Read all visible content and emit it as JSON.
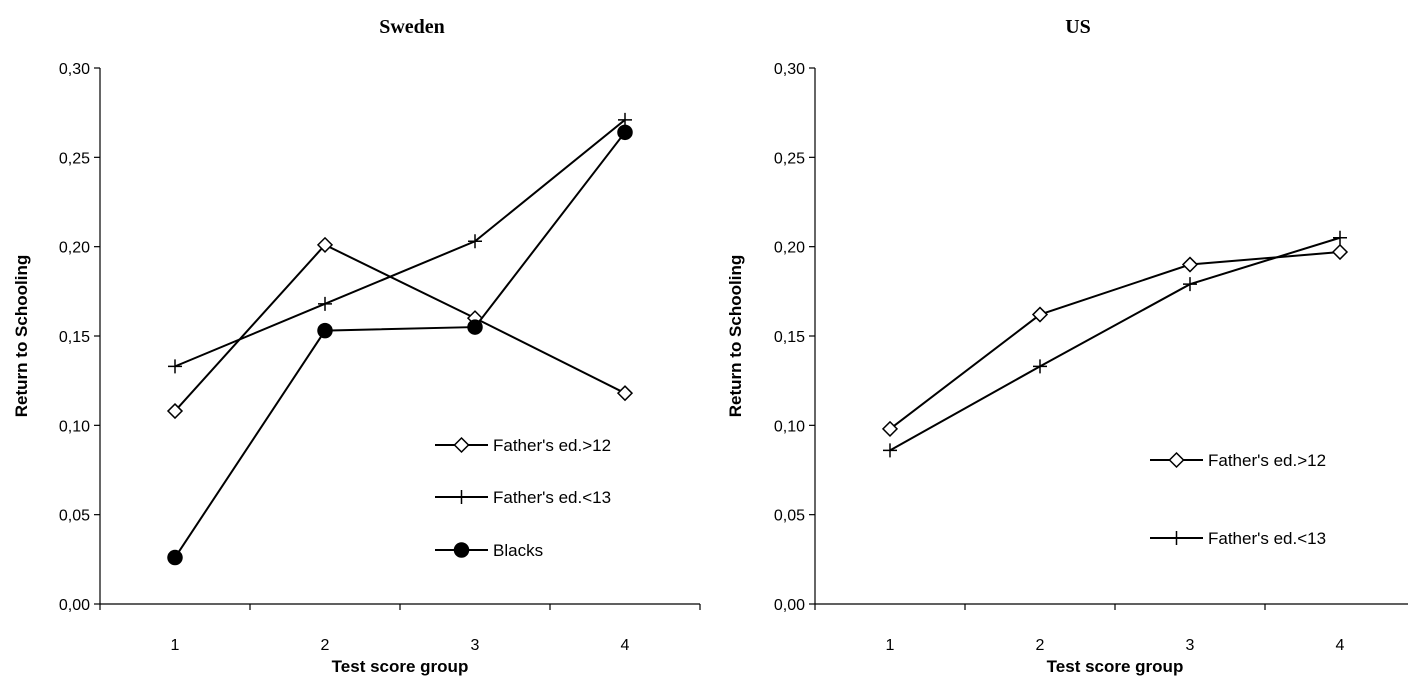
{
  "chart_data": [
    {
      "type": "line",
      "title": "Sweden",
      "xlabel": "Test score group",
      "ylabel": "Return to Schooling",
      "categories": [
        "1",
        "2",
        "3",
        "4"
      ],
      "ylim": [
        0,
        0.3
      ],
      "yticks": [
        "0,00",
        "0,05",
        "0,10",
        "0,15",
        "0,20",
        "0,25",
        "0,30"
      ],
      "grid": false,
      "legend_position": "lower-right",
      "series": [
        {
          "name": "Father's ed.>12",
          "marker": "diamond",
          "values": [
            0.108,
            0.201,
            0.16,
            0.118
          ]
        },
        {
          "name": "Father's ed.<13",
          "marker": "plus",
          "values": [
            0.133,
            0.168,
            0.203,
            0.271
          ]
        },
        {
          "name": "Blacks",
          "marker": "circle",
          "values": [
            0.026,
            0.153,
            0.155,
            0.264
          ]
        }
      ]
    },
    {
      "type": "line",
      "title": "US",
      "xlabel": "Test score group",
      "ylabel": "Return to Schooling",
      "categories": [
        "1",
        "2",
        "3",
        "4"
      ],
      "ylim": [
        0,
        0.3
      ],
      "yticks": [
        "0,00",
        "0,05",
        "0,10",
        "0,15",
        "0,20",
        "0,25",
        "0,30"
      ],
      "grid": false,
      "legend_position": "right",
      "series": [
        {
          "name": "Father's ed.>12",
          "marker": "diamond",
          "values": [
            0.098,
            0.162,
            0.19,
            0.197
          ]
        },
        {
          "name": "Father's ed.<13",
          "marker": "plus",
          "values": [
            0.086,
            0.133,
            0.179,
            0.205
          ]
        }
      ]
    }
  ]
}
